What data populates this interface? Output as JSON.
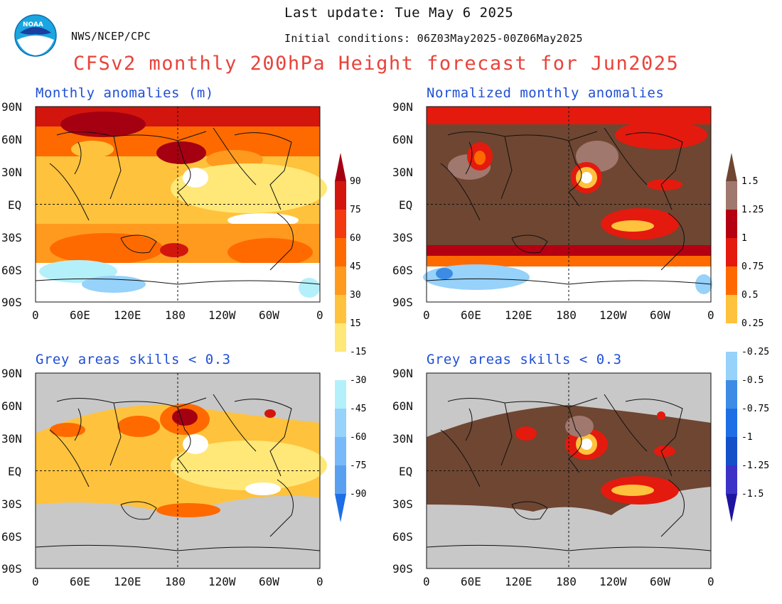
{
  "header": {
    "last_update": "Last update: Tue May 6 2025",
    "initial_conditions": "Initial conditions: 06Z03May2025-00Z06May2025",
    "agency": "NWS/NCEP/CPC",
    "logo_text": "NOAA",
    "title": "CFSv2 monthly 200hPa Height forecast for Jun2025"
  },
  "panels": [
    {
      "id": "tl",
      "title": "Monthly anomalies (m)"
    },
    {
      "id": "tr",
      "title": "Normalized monthly anomalies"
    },
    {
      "id": "bl",
      "title": "Grey areas skills < 0.3"
    },
    {
      "id": "br",
      "title": "Grey areas skills < 0.3"
    }
  ],
  "axes": {
    "lat_labels": [
      "90N",
      "60N",
      "30N",
      "EQ",
      "30S",
      "60S",
      "90S"
    ],
    "lon_labels": [
      "0",
      "60E",
      "120E",
      "180",
      "120W",
      "60W",
      "0"
    ]
  },
  "colorbar_left": {
    "labels": [
      "90",
      "75",
      "60",
      "45",
      "30",
      "15",
      "-15",
      "-30",
      "-45",
      "-60",
      "-75",
      "-90"
    ],
    "warm_colors": [
      "#ffe878",
      "#ffc23c",
      "#ff9a1e",
      "#ff6a00",
      "#f23a0e",
      "#d2160e",
      "#a50012"
    ],
    "cool_colors": [
      "#b4f0fa",
      "#96d2fa",
      "#78b9fa",
      "#5aa0f0",
      "#3c8ce6",
      "#1e6ee6"
    ]
  },
  "colorbar_right": {
    "labels": [
      "1.5",
      "1.25",
      "1",
      "0.75",
      "0.5",
      "0.25",
      "-0.25",
      "-0.5",
      "-0.75",
      "-1",
      "-1.25",
      "-1.5"
    ],
    "warm_colors": [
      "#ffc23c",
      "#ff6a00",
      "#e41a0e",
      "#b40012",
      "#a0786e",
      "#6e4632"
    ],
    "cool_colors": [
      "#96d2fa",
      "#3c8ce6",
      "#1e6ee6",
      "#1450c8",
      "#3c32c8",
      "#1e14a0"
    ]
  },
  "colors": {
    "title_red": "#e8433a",
    "panel_title_blue": "#1f4fd6",
    "skill_grey": "#c8c8c8",
    "high_warm": "#a50012",
    "land_brown": "#6e4632"
  }
}
